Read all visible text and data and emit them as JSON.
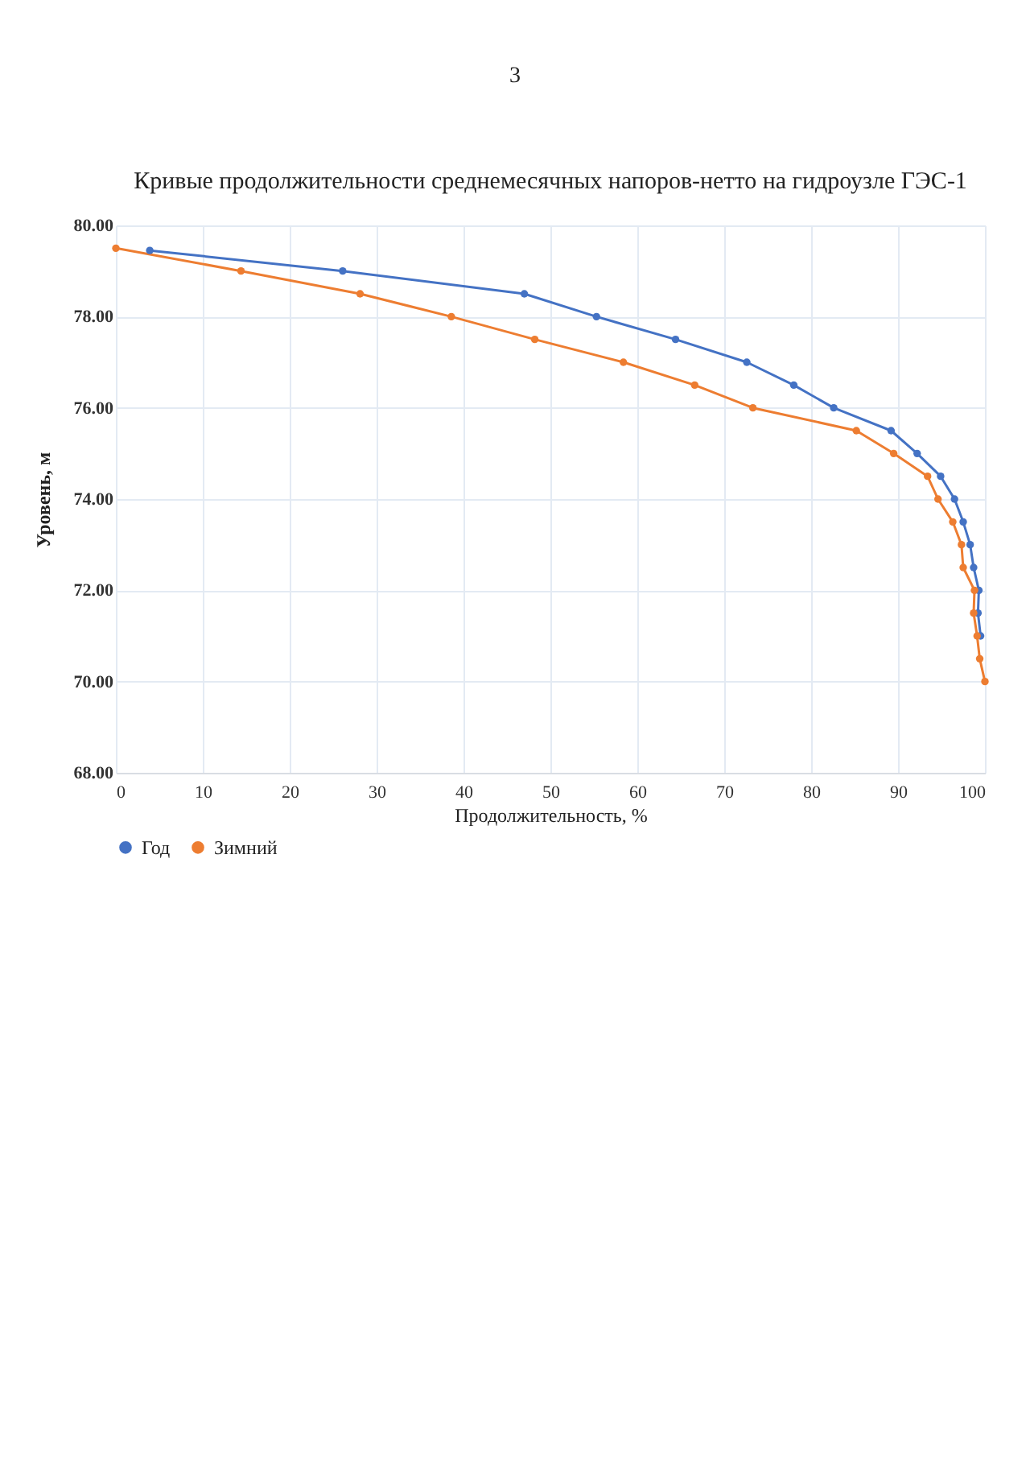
{
  "chart_data": {
    "type": "line",
    "title": "Кривые продолжительности среднемесячных напоров-нетто на гидроузле ГЭС-1",
    "xlabel": "Продолжительность, %",
    "ylabel": "Уровень, м",
    "annotations": [
      "3"
    ],
    "xlim": [
      0,
      100
    ],
    "xticks": [
      0,
      10,
      20,
      30,
      40,
      50,
      60,
      70,
      80,
      90,
      100
    ],
    "ylim": [
      68,
      80
    ],
    "yticks": [
      {
        "value": 68,
        "label": "68.00"
      },
      {
        "value": 70,
        "label": "70.00"
      },
      {
        "value": 72,
        "label": "72.00"
      },
      {
        "value": 74,
        "label": "74.00"
      },
      {
        "value": 76,
        "label": "76.00"
      },
      {
        "value": 78,
        "label": "78.00"
      },
      {
        "value": 80,
        "label": "80.00"
      }
    ],
    "grid": true,
    "legend": "bottom",
    "marker": "circle",
    "series": [
      {
        "name": "Год",
        "color": "#4472c4",
        "x": [
          3.9,
          26.1,
          47.0,
          55.3,
          64.4,
          72.6,
          78.0,
          82.6,
          89.2,
          92.2,
          94.9,
          96.5,
          97.5,
          98.3,
          98.7,
          99.3,
          99.2,
          99.5
        ],
        "values": [
          79.45,
          79,
          78.5,
          78,
          77.5,
          77,
          76.5,
          76,
          75.5,
          75,
          74.5,
          74,
          73.5,
          73,
          72.5,
          72,
          71.5,
          71
        ]
      },
      {
        "name": "Зимний",
        "color": "#ed7d31",
        "x": [
          0,
          14.4,
          28.1,
          38.6,
          48.2,
          58.4,
          66.6,
          73.3,
          85.2,
          89.5,
          93.4,
          94.6,
          96.3,
          97.3,
          97.5,
          98.8,
          98.7,
          99.1,
          99.4,
          100
        ],
        "values": [
          79.5,
          79,
          78.5,
          78,
          77.5,
          77,
          76.5,
          76,
          75.5,
          75,
          74.5,
          74,
          73.5,
          73,
          72.5,
          72,
          71.5,
          71,
          70.5,
          70
        ]
      }
    ]
  }
}
